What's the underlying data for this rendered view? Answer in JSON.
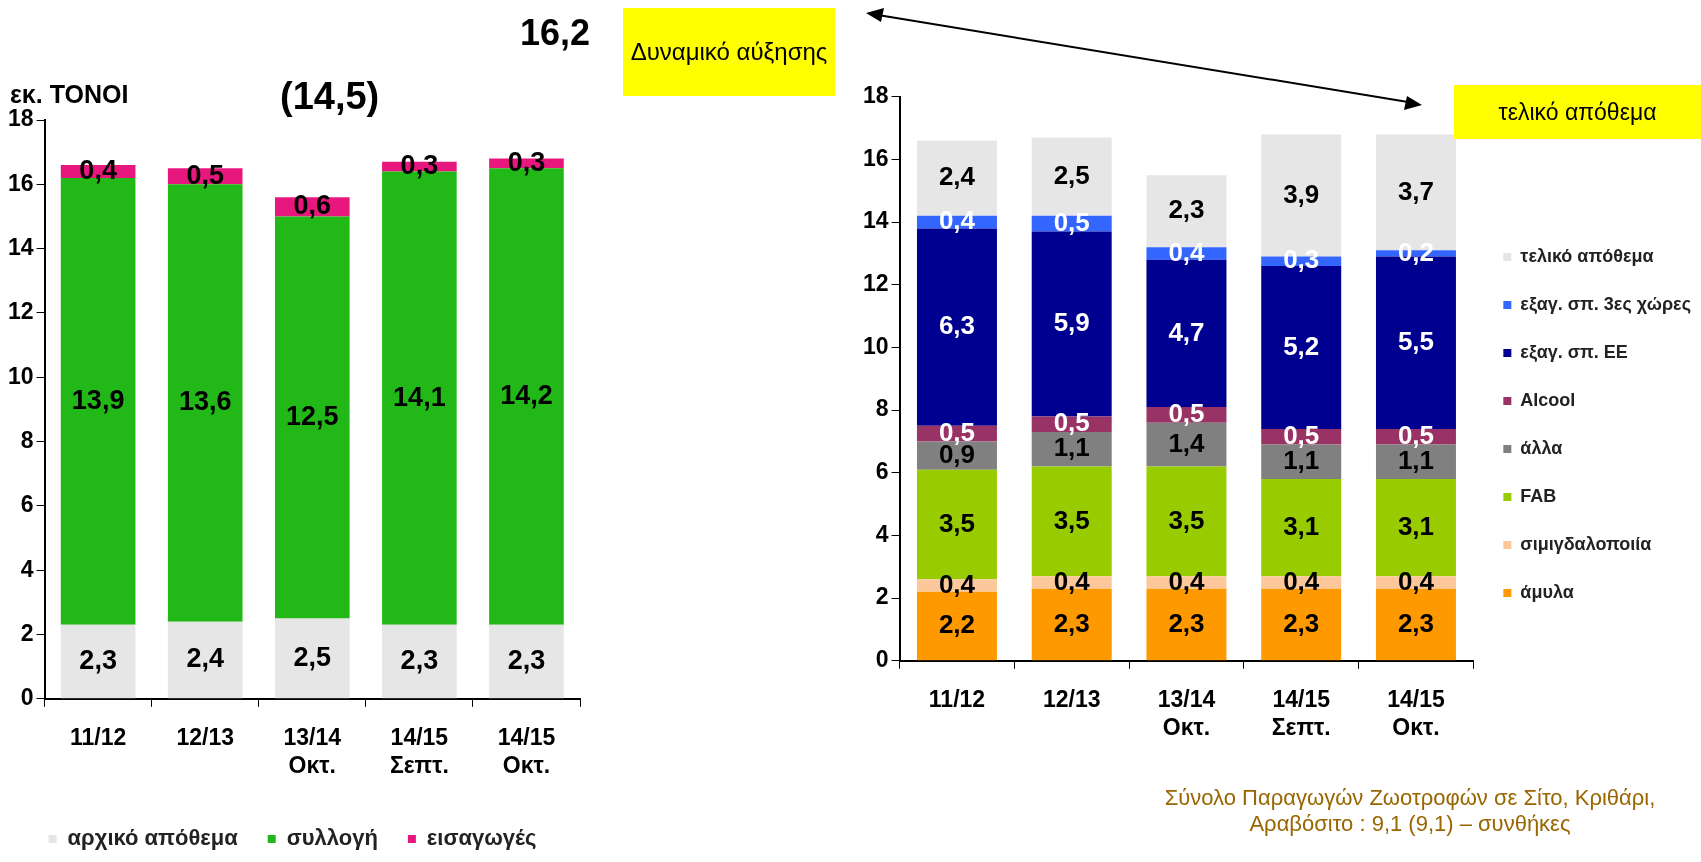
{
  "chart_data": [
    {
      "type": "bar",
      "stacked": true,
      "ylabel": "εκ. ΤΟΝΟΙ",
      "categories": [
        "11/12",
        "12/13",
        "13/14\nΟκτ.",
        "14/15\nΣεπτ.",
        "14/15\nΟκτ."
      ],
      "series": [
        {
          "name": "αρχικό απόθεμα",
          "color": "#e6e6e6",
          "values": [
            2.3,
            2.4,
            2.5,
            2.3,
            2.3
          ],
          "value_labels": [
            "2,3",
            "2,4",
            "2,5",
            "2,3",
            "2,3"
          ]
        },
        {
          "name": "συλλογή",
          "color": "#22b818",
          "values": [
            13.9,
            13.6,
            12.5,
            14.1,
            14.2
          ],
          "value_labels": [
            "13,9",
            "13,6",
            "12,5",
            "14,1",
            "14,2"
          ]
        },
        {
          "name": "εισαγωγές",
          "color": "#e8177d",
          "values": [
            0.4,
            0.5,
            0.6,
            0.3,
            0.3
          ],
          "value_labels": [
            "0,4",
            "0,5",
            "0,6",
            "0,3",
            "0,3"
          ]
        }
      ],
      "ylim": [
        0,
        18
      ],
      "yticks": [
        0,
        2,
        4,
        6,
        8,
        10,
        12,
        14,
        16,
        18
      ],
      "grid": false,
      "legend": "bottom",
      "annotations": [
        "16,2",
        "(14,5)",
        "Δυναμικό αύξησης"
      ]
    },
    {
      "type": "bar",
      "stacked": true,
      "categories": [
        "11/12",
        "12/13",
        "13/14\nΟκτ.",
        "14/15\nΣεπτ.",
        "14/15\nΟκτ."
      ],
      "series": [
        {
          "name": "άμυλα",
          "color": "#ff9900",
          "values": [
            2.2,
            2.3,
            2.3,
            2.3,
            2.3
          ],
          "value_labels": [
            "2,2",
            "2,3",
            "2,3",
            "2,3",
            "2,3"
          ]
        },
        {
          "name": "σιμιγδαλοποιία",
          "color": "#fcc89b",
          "values": [
            0.4,
            0.4,
            0.4,
            0.4,
            0.4
          ],
          "value_labels": [
            "0,4",
            "0,4",
            "0,4",
            "0,4",
            "0,4"
          ]
        },
        {
          "name": "FAB",
          "color": "#99cc00",
          "values": [
            3.5,
            3.5,
            3.5,
            3.1,
            3.1
          ],
          "value_labels": [
            "3,5",
            "3,5",
            "3,5",
            "3,1",
            "3,1"
          ]
        },
        {
          "name": "άλλα",
          "color": "#808080",
          "values": [
            0.9,
            1.1,
            1.4,
            1.1,
            1.1
          ],
          "value_labels": [
            "0,9",
            "1,1",
            "1,4",
            "1,1",
            "1,1"
          ]
        },
        {
          "name": "Alcool",
          "color": "#993366",
          "values": [
            0.5,
            0.5,
            0.5,
            0.5,
            0.5
          ],
          "value_labels": [
            "0,5",
            "0,5",
            "0,5",
            "0,5",
            "0,5"
          ]
        },
        {
          "name": "εξαγ. σπ. ΕΕ",
          "color": "#000090",
          "values": [
            6.3,
            5.9,
            4.7,
            5.2,
            5.5
          ],
          "value_labels": [
            "6,3",
            "5,9",
            "4,7",
            "5,2",
            "5,5"
          ]
        },
        {
          "name": "εξαγ. σπ. 3ες χώρες",
          "color": "#3366ff",
          "values": [
            0.4,
            0.5,
            0.4,
            0.3,
            0.2
          ],
          "value_labels": [
            "0,4",
            "0,5",
            "0,4",
            "0,3",
            "0,2"
          ]
        },
        {
          "name": "τελικό απόθεμα",
          "color": "#e6e6e6",
          "values": [
            2.4,
            2.5,
            2.3,
            3.9,
            3.7
          ],
          "value_labels": [
            "2,4",
            "2,5",
            "2,3",
            "3,9",
            "3,7"
          ]
        }
      ],
      "ylim": [
        0,
        18
      ],
      "yticks": [
        0,
        2,
        4,
        6,
        8,
        10,
        12,
        14,
        16,
        18
      ],
      "grid": false,
      "legend": "right",
      "annotations": [
        "τελικό απόθεμα",
        "Σύνολο Παραγωγών Ζωοτροφών σε Σίτο, Κριθάρι, Αραβόσιτο : 9,1 (9,1) – συνθήκες"
      ]
    }
  ]
}
